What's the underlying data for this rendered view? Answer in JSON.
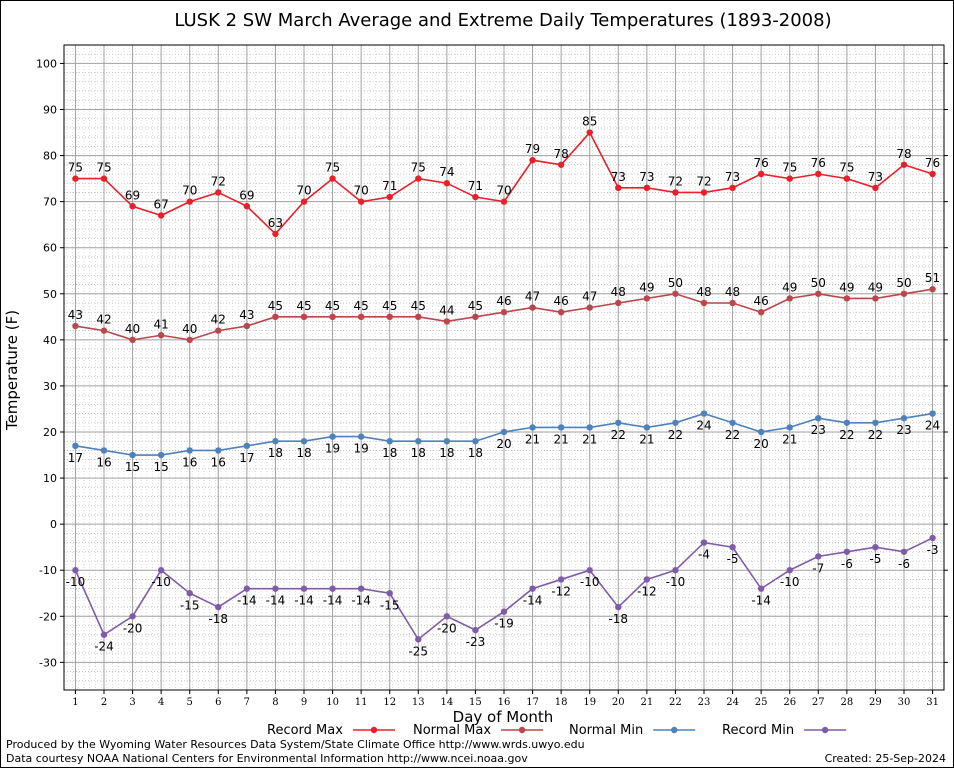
{
  "chart_data": {
    "type": "line",
    "title": "LUSK 2 SW March Average and Extreme Daily Temperatures (1893-2008)",
    "xlabel": "Day of Month",
    "ylabel": "Temperature (F)",
    "x": [
      1,
      2,
      3,
      4,
      5,
      6,
      7,
      8,
      9,
      10,
      11,
      12,
      13,
      14,
      15,
      16,
      17,
      18,
      19,
      20,
      21,
      22,
      23,
      24,
      25,
      26,
      27,
      28,
      29,
      30,
      31
    ],
    "xlim": [
      0.6,
      31.4
    ],
    "ylim": [
      -36,
      104
    ],
    "yticks": [
      -30,
      -20,
      -10,
      0,
      10,
      20,
      30,
      40,
      50,
      60,
      70,
      80,
      90,
      100
    ],
    "grid": true,
    "legend_position": "bottom",
    "series": [
      {
        "name": "Record Max",
        "color": "#e8202a",
        "label_position": "above",
        "values": [
          75,
          75,
          69,
          67,
          70,
          72,
          69,
          63,
          70,
          75,
          70,
          71,
          75,
          74,
          71,
          70,
          79,
          78,
          85,
          73,
          73,
          72,
          72,
          73,
          76,
          75,
          76,
          75,
          73,
          78,
          76
        ]
      },
      {
        "name": "Normal Max",
        "color": "#b9474c",
        "label_position": "above",
        "values": [
          43,
          42,
          40,
          41,
          40,
          42,
          43,
          45,
          45,
          45,
          45,
          45,
          45,
          44,
          45,
          46,
          47,
          46,
          47,
          48,
          49,
          50,
          48,
          48,
          46,
          49,
          50,
          49,
          49,
          50,
          51
        ]
      },
      {
        "name": "Normal Min",
        "color": "#4f81bd",
        "label_position": "below",
        "values": [
          17,
          16,
          15,
          15,
          16,
          16,
          17,
          18,
          18,
          19,
          19,
          18,
          18,
          18,
          18,
          20,
          21,
          21,
          21,
          22,
          21,
          22,
          24,
          22,
          20,
          21,
          23,
          22,
          22,
          23,
          24
        ]
      },
      {
        "name": "Record Min",
        "color": "#7e5ca8",
        "label_position": "below",
        "values": [
          -10,
          -24,
          -20,
          -10,
          -15,
          -18,
          -14,
          -14,
          -14,
          -14,
          -14,
          -15,
          -25,
          -20,
          -23,
          -19,
          -14,
          -12,
          -10,
          -18,
          -12,
          -10,
          -4,
          -5,
          -14,
          -10,
          -7,
          -6,
          -5,
          -6,
          -3
        ]
      }
    ]
  },
  "footer": {
    "produced_by": "Produced by the Wyoming Water Resources Data System/State Climate Office http://www.wrds.uwyo.edu",
    "data_courtesy": "Data courtesy NOAA National Centers for Environmental Information http://www.ncei.noaa.gov",
    "created": "Created: 25-Sep-2024"
  }
}
